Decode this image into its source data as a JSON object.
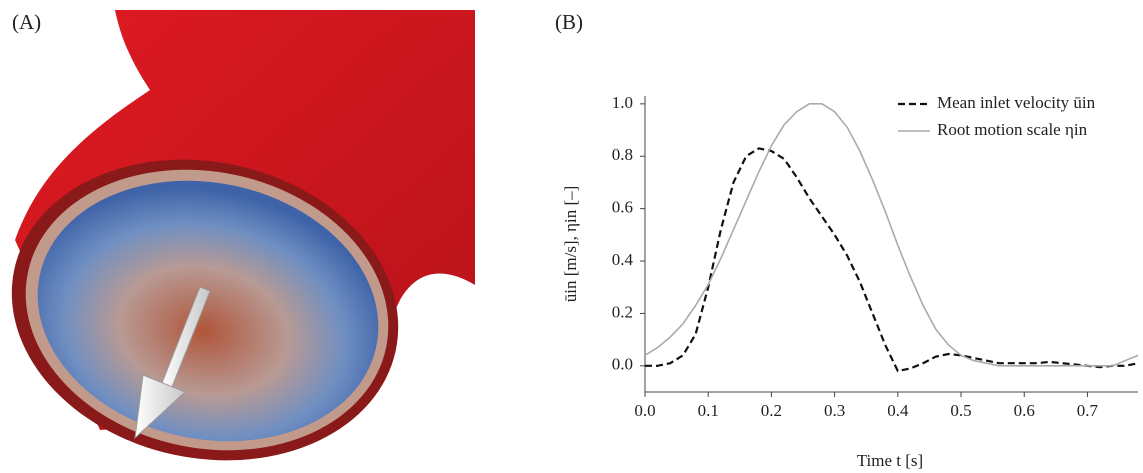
{
  "panel_labels": [
    "(A)",
    "(B)"
  ],
  "chart_data": {
    "type": "line",
    "xlabel": "Time t [s]",
    "ylabel": "ūin [m/s], ηin [–]",
    "x": [
      0,
      0.02,
      0.04,
      0.06,
      0.08,
      0.1,
      0.12,
      0.14,
      0.16,
      0.18,
      0.2,
      0.22,
      0.24,
      0.26,
      0.28,
      0.3,
      0.32,
      0.34,
      0.36,
      0.38,
      0.4,
      0.42,
      0.44,
      0.46,
      0.48,
      0.5,
      0.52,
      0.54,
      0.56,
      0.58,
      0.6,
      0.62,
      0.64,
      0.66,
      0.68,
      0.7,
      0.72,
      0.74,
      0.76,
      0.78
    ],
    "series": [
      {
        "name": "Mean inlet velocity ūin",
        "color": "#111111",
        "dash": true,
        "values": [
          0.0,
          0.0,
          0.01,
          0.04,
          0.12,
          0.3,
          0.52,
          0.7,
          0.8,
          0.83,
          0.82,
          0.79,
          0.72,
          0.64,
          0.57,
          0.5,
          0.42,
          0.32,
          0.2,
          0.08,
          -0.02,
          -0.01,
          0.01,
          0.035,
          0.045,
          0.04,
          0.03,
          0.02,
          0.01,
          0.01,
          0.01,
          0.01,
          0.015,
          0.01,
          0.005,
          0.0,
          -0.005,
          0.0,
          0.0,
          0.01
        ]
      },
      {
        "name": "Root motion scale ηin",
        "color": "#aaaaaa",
        "dash": false,
        "values": [
          0.04,
          0.07,
          0.11,
          0.16,
          0.23,
          0.31,
          0.41,
          0.52,
          0.63,
          0.74,
          0.84,
          0.92,
          0.97,
          1.0,
          1.0,
          0.97,
          0.91,
          0.82,
          0.71,
          0.59,
          0.46,
          0.34,
          0.23,
          0.14,
          0.08,
          0.04,
          0.02,
          0.01,
          0.0,
          0.0,
          0.0,
          0.0,
          0.0,
          0.0,
          0.0,
          0.0,
          0.0,
          0.0,
          0.02,
          0.04
        ]
      }
    ],
    "xlim": [
      0,
      0.78
    ],
    "ylim": [
      -0.1,
      1.03
    ],
    "xticks": [
      {
        "value": 0,
        "label": "0.0"
      },
      0.1,
      0.2,
      0.3,
      0.4,
      0.5,
      0.6,
      0.7
    ],
    "yticks": [
      {
        "value": 0,
        "label": "0.0"
      },
      0.2,
      0.4,
      0.6,
      0.8,
      {
        "value": 1,
        "label": "1.0"
      }
    ],
    "grid": false,
    "legend": "upper right"
  }
}
